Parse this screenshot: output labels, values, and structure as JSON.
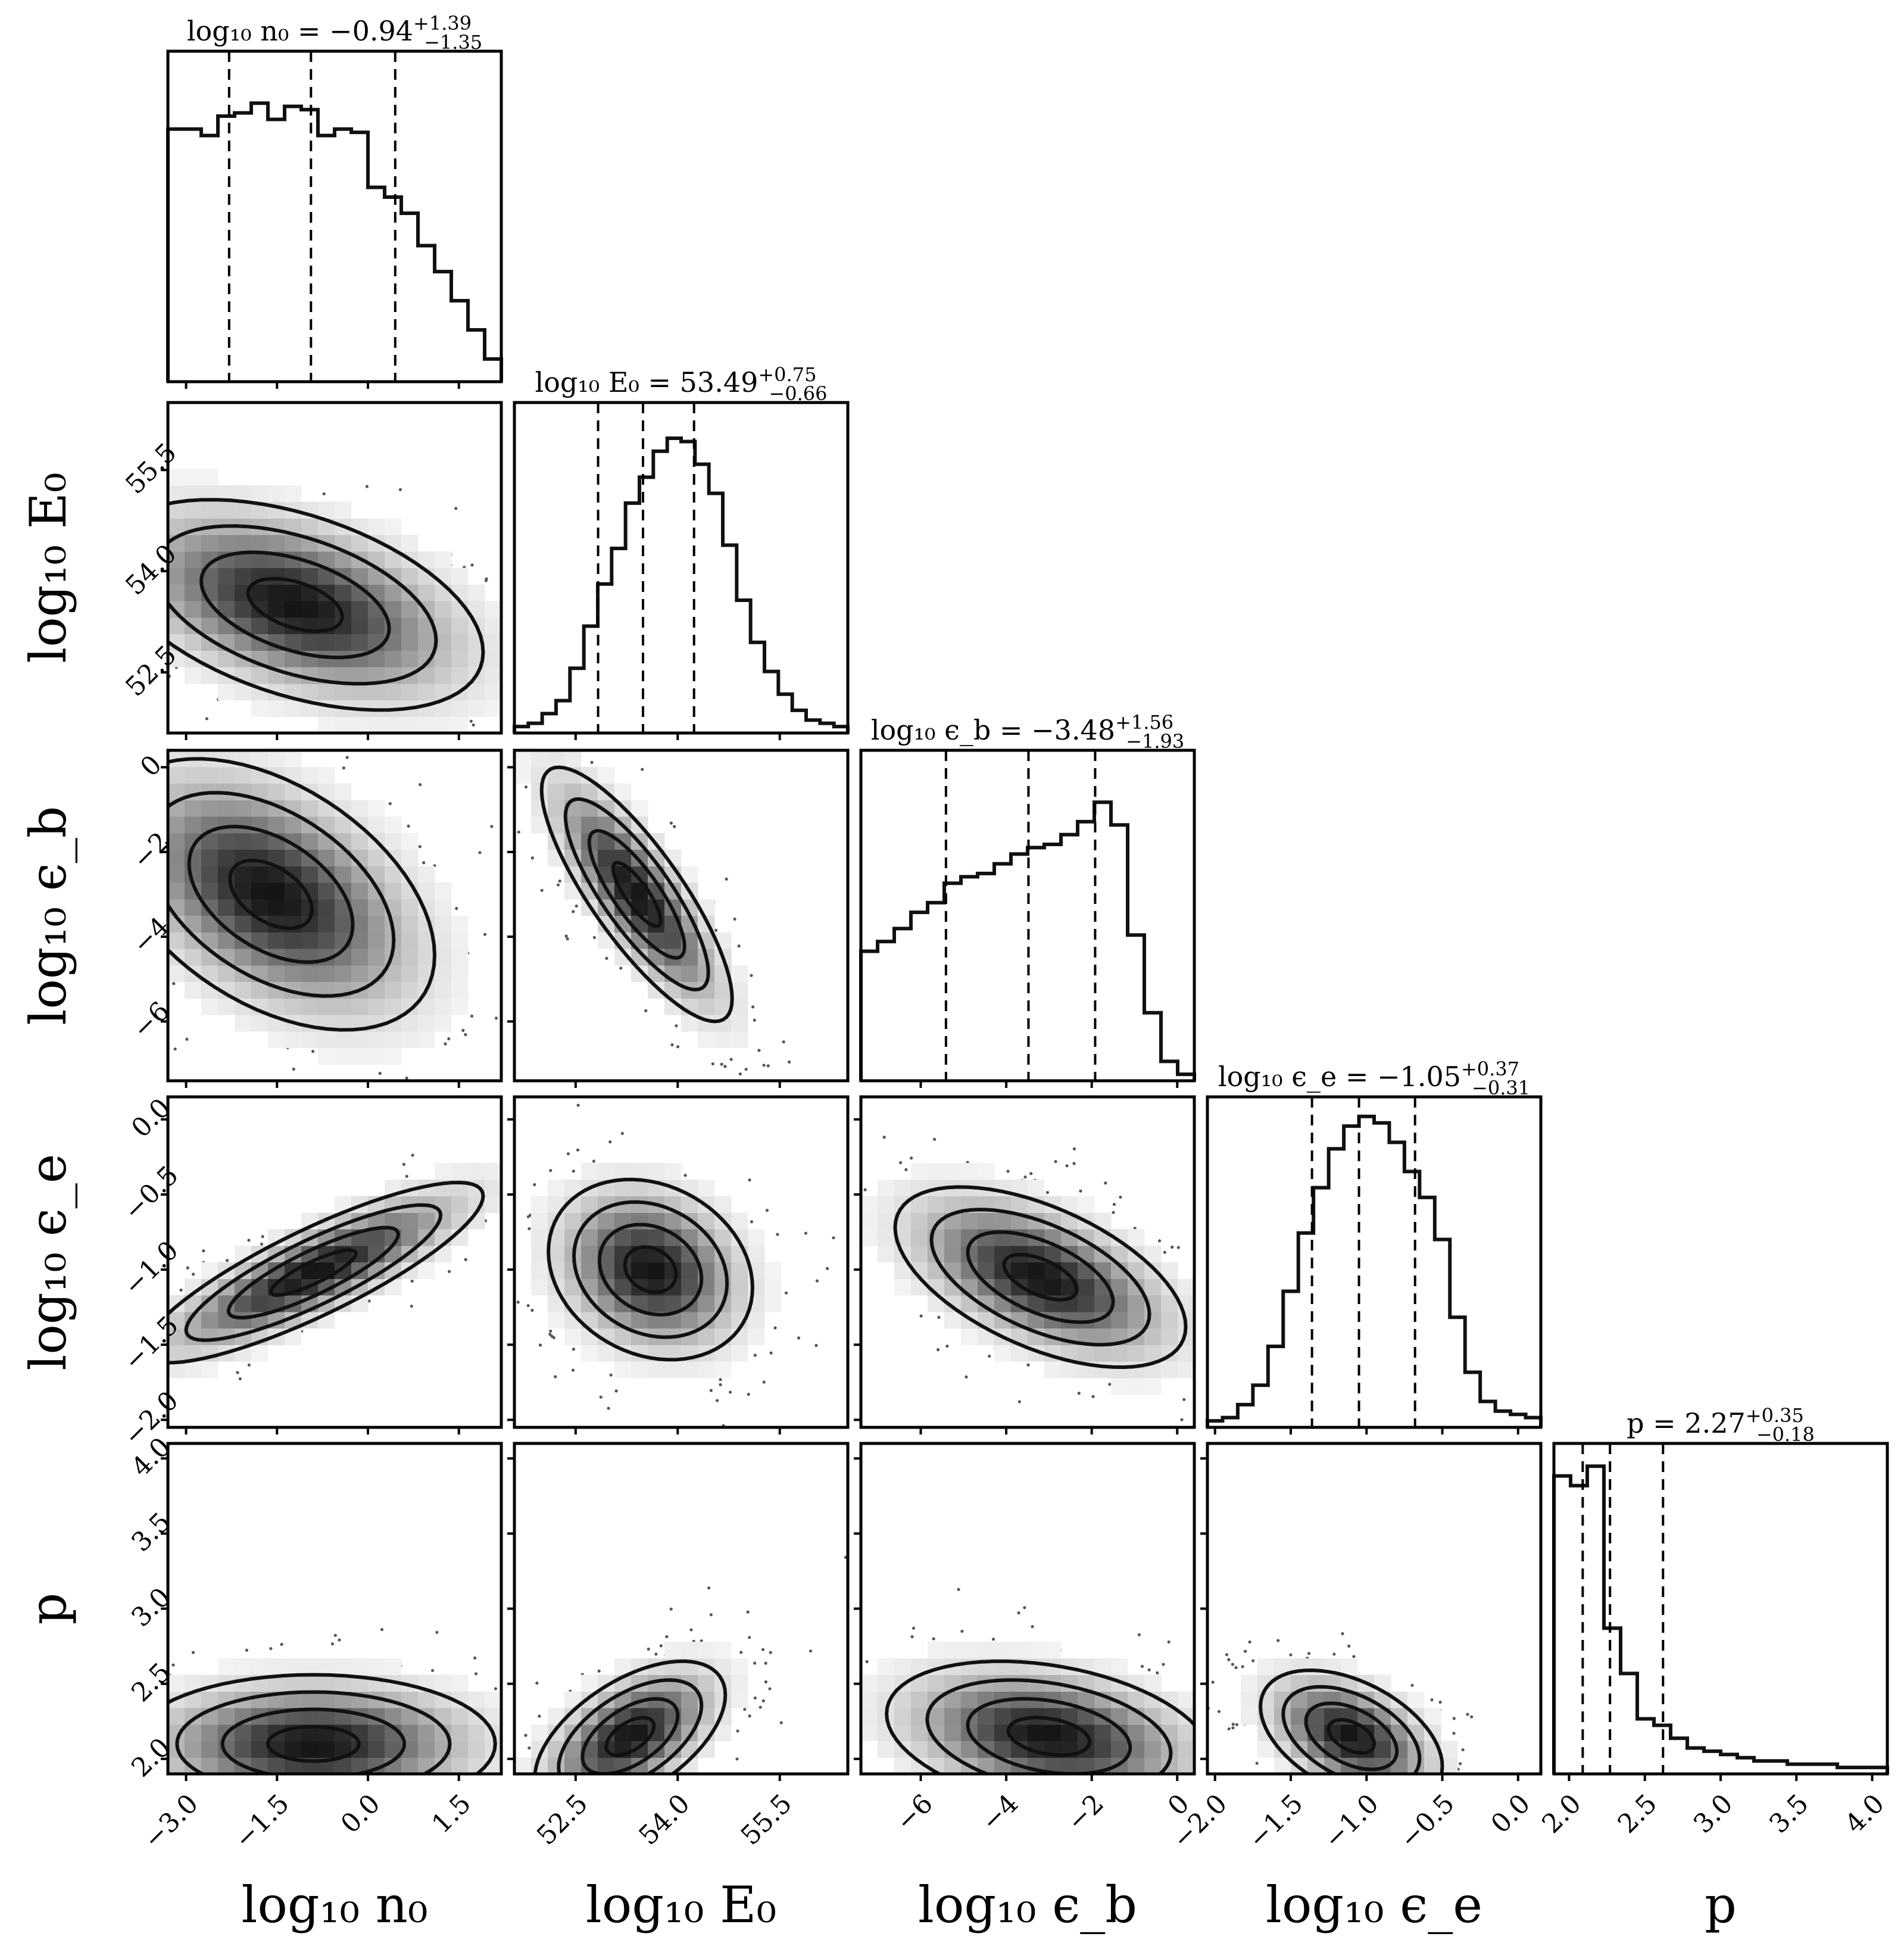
{
  "chart_data": {
    "type": "corner",
    "parameters": [
      {
        "key": "n0",
        "label": "log₁₀ n₀",
        "range": [
          -3.3,
          2.2
        ],
        "ticks": [
          "−3.0",
          "−1.5",
          "0.0",
          "1.5"
        ],
        "tickvals": [
          -3.0,
          -1.5,
          0.0,
          1.5
        ],
        "median": -0.94,
        "q_lo": -2.29,
        "q_hi": 0.45,
        "title": "log₁₀ n₀ = −0.94",
        "plus": "+1.39",
        "minus": "−1.35"
      },
      {
        "key": "E0",
        "label": "log₁₀ E₀",
        "range": [
          51.6,
          56.5
        ],
        "ticks": [
          "52.5",
          "54.0",
          "55.5"
        ],
        "tickvals": [
          52.5,
          54.0,
          55.5
        ],
        "median": 53.49,
        "q_lo": 52.83,
        "q_hi": 54.24,
        "title": "log₁₀ E₀ = 53.49",
        "plus": "+0.75",
        "minus": "−0.66"
      },
      {
        "key": "eb",
        "label": "log₁₀ ϵ_b",
        "range": [
          -7.4,
          0.4
        ],
        "ticks": [
          "−6",
          "−4",
          "−2",
          "0"
        ],
        "tickvals": [
          -6,
          -4,
          -2,
          0
        ],
        "median": -3.48,
        "q_lo": -5.41,
        "q_hi": -1.92,
        "title": "log₁₀ ϵ_b = −3.48",
        "plus": "+1.56",
        "minus": "−1.93"
      },
      {
        "key": "ee",
        "label": "log₁₀ ϵ_e",
        "range": [
          -2.05,
          0.15
        ],
        "ticks": [
          "−2.0",
          "−1.5",
          "−1.0",
          "−0.5",
          "0.0"
        ],
        "tickvals": [
          -2.0,
          -1.5,
          -1.0,
          -0.5,
          0.0
        ],
        "median": -1.05,
        "q_lo": -1.36,
        "q_hi": -0.68,
        "title": "log₁₀ ϵ_e = −1.05",
        "plus": "+0.37",
        "minus": "−0.31"
      },
      {
        "key": "p",
        "label": "p",
        "range": [
          1.9,
          4.1
        ],
        "ticks": [
          "2.0",
          "2.5",
          "3.0",
          "3.5",
          "4.0"
        ],
        "tickvals": [
          2.0,
          2.5,
          3.0,
          3.5,
          4.0
        ],
        "median": 2.27,
        "q_lo": 2.09,
        "q_hi": 2.62,
        "title": "p = 2.27",
        "plus": "+0.35",
        "minus": "−0.18"
      }
    ],
    "histograms": {
      "n0": [
        0.78,
        0.78,
        0.76,
        0.82,
        0.83,
        0.86,
        0.81,
        0.85,
        0.84,
        0.76,
        0.78,
        0.77,
        0.6,
        0.57,
        0.52,
        0.42,
        0.34,
        0.25,
        0.16,
        0.07
      ],
      "E0": [
        0.02,
        0.03,
        0.06,
        0.1,
        0.2,
        0.33,
        0.46,
        0.57,
        0.71,
        0.79,
        0.87,
        0.91,
        0.9,
        0.83,
        0.74,
        0.58,
        0.41,
        0.28,
        0.19,
        0.12,
        0.07,
        0.04,
        0.03,
        0.02
      ],
      "eb": [
        0.4,
        0.43,
        0.47,
        0.52,
        0.55,
        0.61,
        0.63,
        0.64,
        0.67,
        0.7,
        0.72,
        0.73,
        0.76,
        0.8,
        0.86,
        0.79,
        0.45,
        0.21,
        0.06,
        0.02
      ],
      "ee": [
        0.02,
        0.03,
        0.07,
        0.13,
        0.25,
        0.42,
        0.6,
        0.74,
        0.86,
        0.93,
        0.96,
        0.94,
        0.88,
        0.79,
        0.71,
        0.58,
        0.34,
        0.17,
        0.08,
        0.05,
        0.04,
        0.03
      ],
      "p": [
        0.92,
        0.89,
        0.95,
        0.45,
        0.31,
        0.17,
        0.15,
        0.11,
        0.08,
        0.07,
        0.06,
        0.05,
        0.04,
        0.04,
        0.03,
        0.03,
        0.03,
        0.02,
        0.02,
        0.02
      ]
    },
    "pairs": [
      {
        "x": "n0",
        "y": "E0",
        "cx": -1.2,
        "cy": 53.5,
        "sx": 1.55,
        "sy": 0.78,
        "rho": -0.45
      },
      {
        "x": "n0",
        "y": "eb",
        "cx": -1.6,
        "cy": -3.0,
        "sx": 1.35,
        "sy": 1.6,
        "rho": -0.45
      },
      {
        "x": "n0",
        "y": "ee",
        "cx": -0.9,
        "cy": -1.02,
        "sx": 1.4,
        "sy": 0.3,
        "rho": 0.85
      },
      {
        "x": "n0",
        "y": "p",
        "cx": -0.9,
        "cy": 2.1,
        "sx": 1.5,
        "sy": 0.23,
        "rho": 0.0
      },
      {
        "x": "E0",
        "y": "eb",
        "cx": 53.4,
        "cy": -3.0,
        "sx": 0.7,
        "sy": 1.5,
        "rho": -0.82
      },
      {
        "x": "E0",
        "y": "ee",
        "cx": 53.6,
        "cy": -1.0,
        "sx": 0.75,
        "sy": 0.3,
        "rho": -0.2
      },
      {
        "x": "E0",
        "y": "p",
        "cx": 53.3,
        "cy": 2.15,
        "sx": 0.7,
        "sy": 0.25,
        "rho": 0.55
      },
      {
        "x": "eb",
        "y": "ee",
        "cx": -3.2,
        "cy": -1.05,
        "sx": 1.7,
        "sy": 0.3,
        "rho": -0.55
      },
      {
        "x": "eb",
        "y": "p",
        "cx": -3.0,
        "cy": 2.15,
        "sx": 1.9,
        "sy": 0.25,
        "rho": -0.3
      },
      {
        "x": "ee",
        "y": "p",
        "cx": -1.1,
        "cy": 2.15,
        "sx": 0.3,
        "sy": 0.22,
        "rho": -0.45
      }
    ],
    "grid": false,
    "legend": "none"
  }
}
